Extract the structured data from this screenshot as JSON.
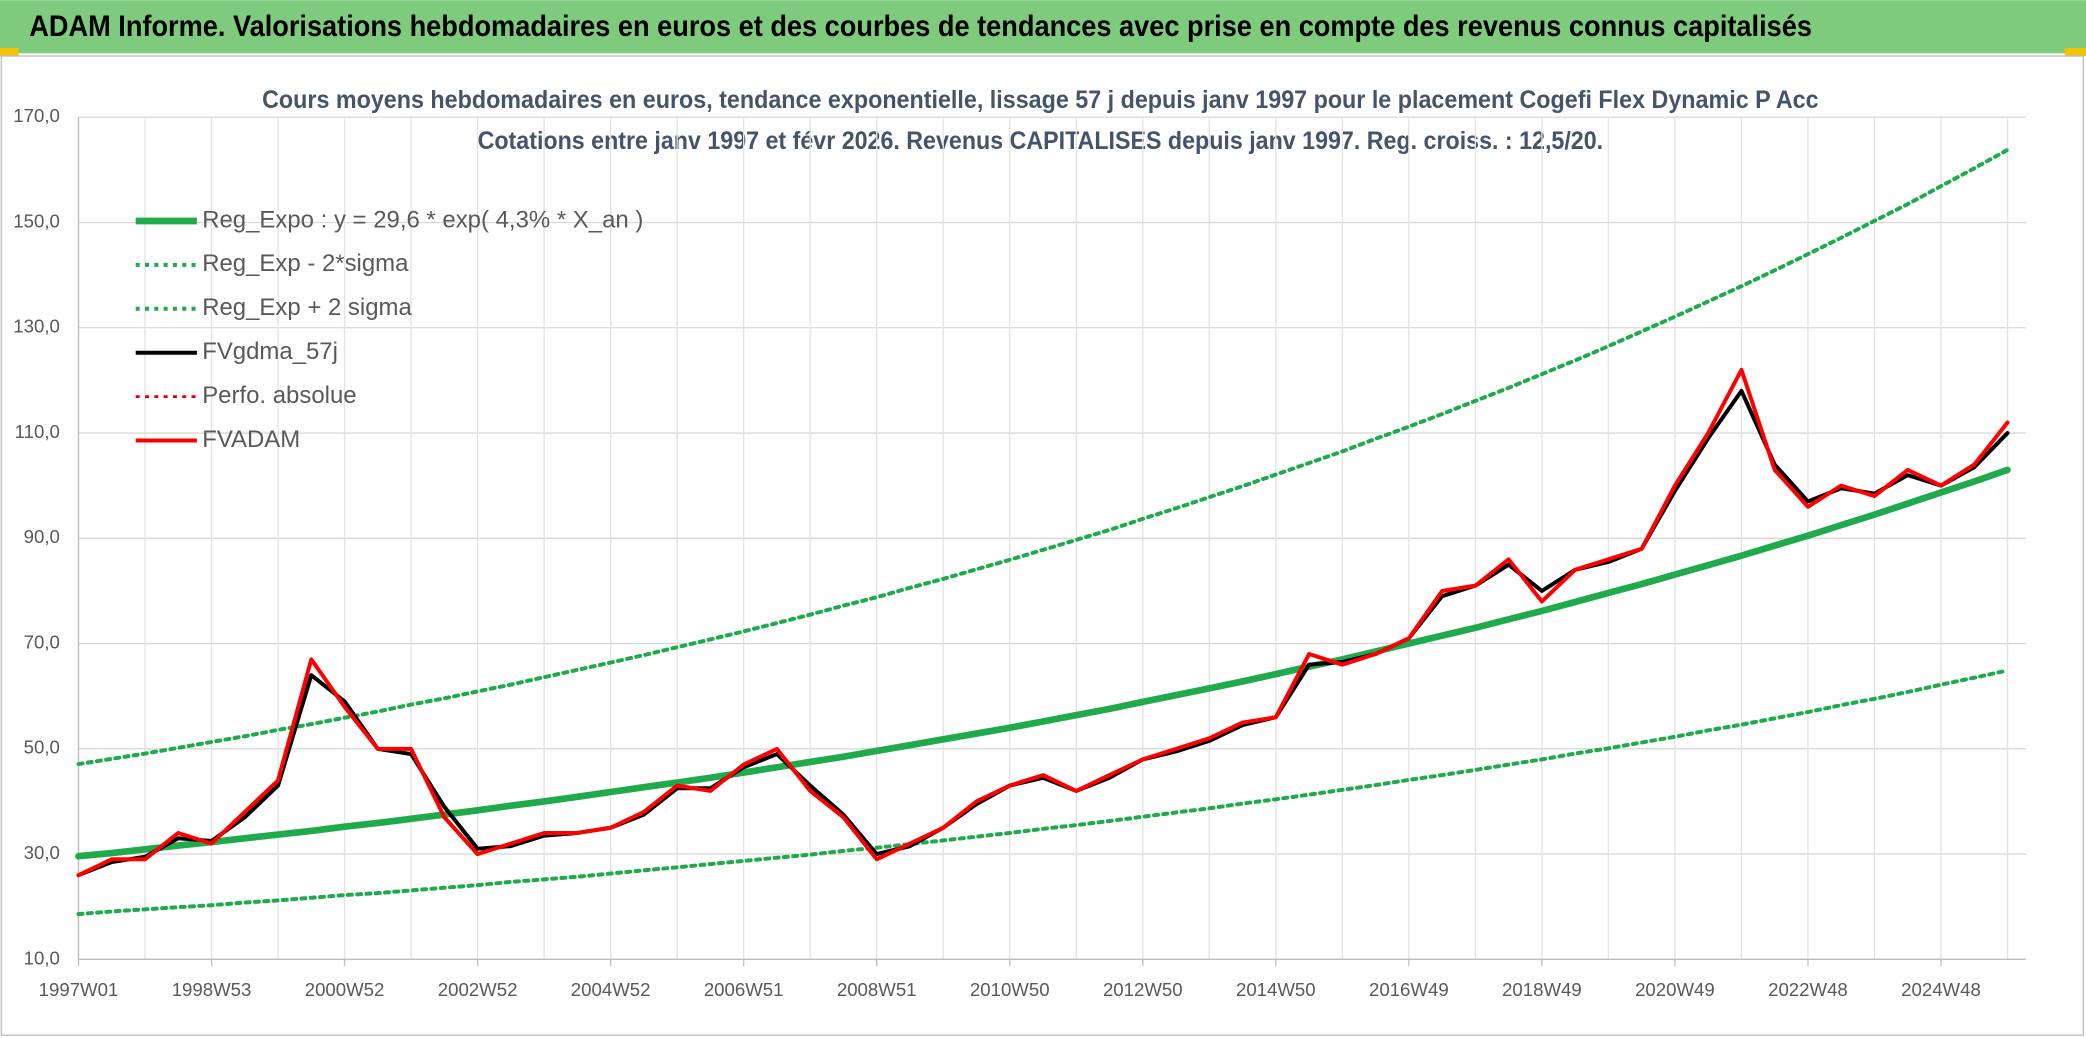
{
  "banner": "ADAM Informe. Valorisations hebdomadaires en euros et des courbes de tendances avec prise en compte des revenus connus capitalisés",
  "chart_data": {
    "type": "line",
    "title": "Cours moyens hebdomadaires en euros, tendance exponentielle, lissage 57 j depuis janv 1997 pour le placement Cogefi Flex Dynamic P Acc",
    "subtitle": "Cotations entre janv 1997 et févr 2026. Revenus CAPITALISES depuis janv 1997. Reg. croiss. : 12,5/20.",
    "categories": [
      "1997W01",
      null,
      null,
      null,
      "1998W53",
      null,
      null,
      null,
      "2000W52",
      null,
      null,
      null,
      "2002W52",
      null,
      null,
      null,
      "2004W52",
      null,
      null,
      null,
      "2006W51",
      null,
      null,
      null,
      "2008W51",
      null,
      null,
      null,
      "2010W50",
      null,
      null,
      null,
      "2012W50",
      null,
      null,
      null,
      "2014W50",
      null,
      null,
      null,
      "2016W49",
      null,
      null,
      null,
      "2018W49",
      null,
      null,
      null,
      "2020W49",
      null,
      null,
      null,
      "2022W48",
      null,
      null,
      null,
      "2024W48",
      null,
      null
    ],
    "ylim": [
      10,
      170
    ],
    "yticks": [
      {
        "value": 10,
        "label": "10,0"
      },
      {
        "value": 30,
        "label": "30,0"
      },
      {
        "value": 50,
        "label": "50,0"
      },
      {
        "value": 70,
        "label": "70,0"
      },
      {
        "value": 90,
        "label": "90,0"
      },
      {
        "value": 110,
        "label": "110,0"
      },
      {
        "value": 130,
        "label": "130,0"
      },
      {
        "value": 150,
        "label": "150,0"
      },
      {
        "value": 170,
        "label": "170,0"
      }
    ],
    "grid": true,
    "legend": "upper left",
    "series": [
      {
        "name": "Reg_Expo : y = 29,6 * exp( 4,3% *  X_an )",
        "color": "#1faa4b",
        "style": "solid",
        "width": 5,
        "values": [
          29.6,
          30.2,
          30.9,
          31.6,
          32.3,
          33.0,
          33.7,
          34.4,
          35.2,
          35.9,
          36.7,
          37.5,
          38.3,
          39.2,
          40.0,
          40.9,
          41.8,
          42.7,
          43.6,
          44.5,
          45.5,
          46.5,
          47.5,
          48.5,
          49.6,
          50.7,
          51.8,
          52.9,
          54.0,
          55.2,
          56.4,
          57.6,
          58.9,
          60.2,
          61.5,
          62.8,
          64.2,
          65.6,
          67.0,
          68.5,
          70.0,
          71.5,
          73.0,
          74.6,
          76.2,
          77.9,
          79.6,
          81.3,
          83.1,
          84.9,
          86.7,
          88.6,
          90.5,
          92.5,
          94.5,
          96.6,
          98.7,
          100.8,
          103.0
        ]
      },
      {
        "name": "Reg_Exp - 2*sigma",
        "color": "#1faa4b",
        "style": "dotted",
        "width": 3,
        "values": [
          18.6,
          19.1,
          19.5,
          19.9,
          20.3,
          20.8,
          21.2,
          21.7,
          22.2,
          22.6,
          23.1,
          23.6,
          24.1,
          24.7,
          25.2,
          25.7,
          26.3,
          26.9,
          27.5,
          28.1,
          28.7,
          29.3,
          29.9,
          30.6,
          31.2,
          31.9,
          32.6,
          33.3,
          34.0,
          34.8,
          35.5,
          36.3,
          37.1,
          37.9,
          38.7,
          39.6,
          40.4,
          41.3,
          42.2,
          43.1,
          44.1,
          45.0,
          46.0,
          47.0,
          48.0,
          49.1,
          50.1,
          51.2,
          52.3,
          53.5,
          54.6,
          55.8,
          57.0,
          58.3,
          59.5,
          60.8,
          62.2,
          63.5,
          64.9
        ]
      },
      {
        "name": "Reg_Exp + 2 sigma",
        "color": "#1faa4b",
        "style": "dotted",
        "width": 3,
        "values": [
          47.1,
          48.1,
          49.1,
          50.2,
          51.3,
          52.4,
          53.6,
          54.7,
          55.9,
          57.1,
          58.4,
          59.6,
          60.9,
          62.2,
          63.6,
          65.0,
          66.4,
          67.8,
          69.3,
          70.8,
          72.3,
          73.9,
          75.5,
          77.2,
          78.8,
          80.6,
          82.3,
          84.1,
          85.9,
          87.8,
          89.7,
          91.6,
          93.7,
          95.7,
          97.8,
          99.9,
          102.1,
          104.3,
          106.5,
          108.9,
          111.2,
          113.6,
          116.1,
          118.6,
          121.2,
          123.8,
          126.5,
          129.3,
          132.1,
          135.0,
          137.9,
          140.9,
          144.0,
          147.1,
          150.3,
          153.5,
          156.9,
          160.3,
          163.8
        ]
      },
      {
        "name": "FVgdma_57j",
        "color": "#000000",
        "style": "solid",
        "width": 3,
        "values": [
          26,
          28.5,
          29.5,
          33,
          32.5,
          37,
          43,
          64,
          59,
          50,
          49,
          39,
          31,
          31.5,
          33.5,
          34,
          35,
          37.5,
          42.5,
          42.5,
          46.5,
          49,
          43,
          37.5,
          30,
          31.5,
          35,
          39.5,
          43,
          44.5,
          42,
          44.5,
          48,
          49.5,
          51.5,
          54.5,
          56,
          66,
          66.5,
          68,
          71,
          79,
          81,
          85,
          80,
          84,
          85.5,
          88,
          99,
          109,
          118,
          104,
          97,
          99.5,
          98.5,
          102,
          100,
          103.5,
          110
        ]
      },
      {
        "name": "Perfo. absolue",
        "color": "#e00000",
        "style": "dotted",
        "width": 2,
        "values": [
          26,
          29,
          29,
          34,
          32,
          38,
          44,
          67,
          58,
          50,
          50,
          37,
          30,
          32,
          34,
          34,
          35,
          38,
          43,
          42,
          47,
          50,
          42,
          37,
          29,
          32,
          35,
          40,
          43,
          45,
          42,
          45,
          48,
          50,
          52,
          55,
          56,
          68,
          66,
          68,
          71,
          80,
          81,
          86,
          78,
          84,
          86,
          88,
          100,
          110,
          122,
          103,
          96,
          100,
          98,
          103,
          100,
          104,
          112
        ]
      },
      {
        "name": "FVADAM",
        "color": "#ff0000",
        "style": "solid",
        "width": 3,
        "values": [
          26,
          29,
          29,
          34,
          32,
          38,
          44,
          67,
          58,
          50,
          50,
          37,
          30,
          32,
          34,
          34,
          35,
          38,
          43,
          42,
          47,
          50,
          42,
          37,
          29,
          32,
          35,
          40,
          43,
          45,
          42,
          45,
          48,
          50,
          52,
          55,
          56,
          68,
          66,
          68,
          71,
          80,
          81,
          86,
          78,
          84,
          86,
          88,
          100,
          110,
          122,
          103,
          96,
          100,
          98,
          103,
          100,
          104,
          112
        ]
      }
    ]
  }
}
